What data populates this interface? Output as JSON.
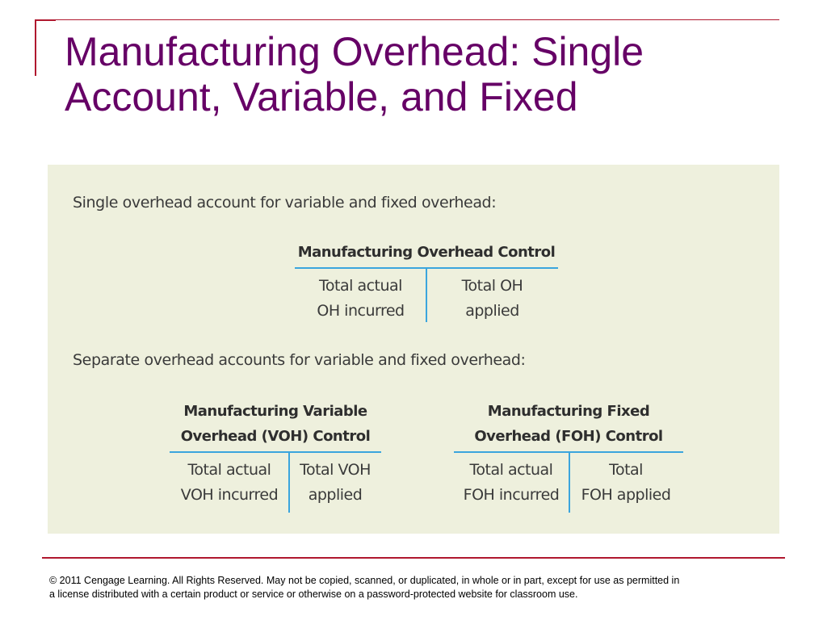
{
  "slide": {
    "title_lines": [
      "Manufacturing Overhead:  Single",
      "Account, Variable, and Fixed"
    ]
  },
  "figure": {
    "single_intro": "Single overhead account for variable and fixed overhead:",
    "single_account": {
      "title_lines": [
        "Manufacturing Overhead Control"
      ],
      "debit_lines": [
        "Total actual",
        "OH incurred"
      ],
      "credit_lines": [
        "Total OH",
        "applied"
      ]
    },
    "separate_intro": "Separate overhead accounts for variable and fixed overhead:",
    "variable_account": {
      "title_lines": [
        "Manufacturing Variable",
        "Overhead (VOH) Control"
      ],
      "debit_lines": [
        "Total actual",
        "VOH incurred"
      ],
      "credit_lines": [
        "Total VOH",
        "applied"
      ]
    },
    "fixed_account": {
      "title_lines": [
        "Manufacturing Fixed",
        "Overhead (FOH) Control"
      ],
      "debit_lines": [
        "Total actual",
        "FOH incurred"
      ],
      "credit_lines": [
        "Total",
        "FOH applied"
      ]
    }
  },
  "footer": {
    "copyright_lines": [
      "© 2011 Cengage Learning.  All Rights Reserved.  May not be copied, scanned, or duplicated, in whole or in part, except for use as permitted in",
      "a license distributed with a certain product or service or otherwise on a password-protected website for classroom use."
    ]
  },
  "colors": {
    "title": "#660066",
    "accent_rule": "#b0182f",
    "t_account_line": "#3ba5dd",
    "panel_background": "#eef0dd"
  }
}
